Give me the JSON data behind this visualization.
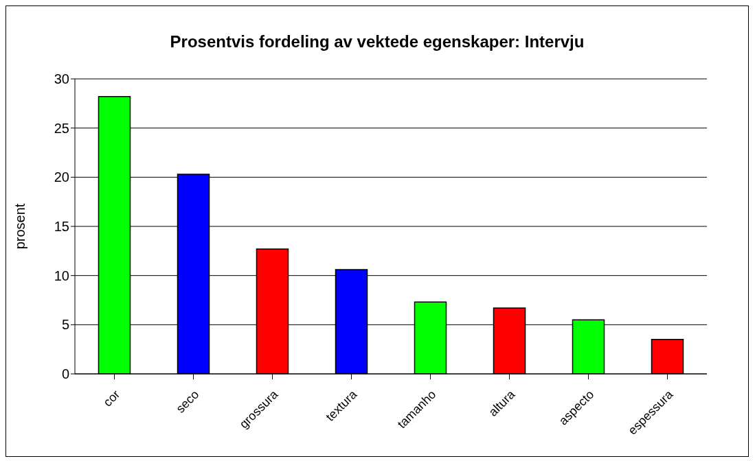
{
  "chart_data": {
    "type": "bar",
    "title": "Prosentvis fordeling av vektede egenskaper: Intervju",
    "ylabel": "prosent",
    "categories": [
      "cor",
      "seco",
      "grossura",
      "textura",
      "tamanho",
      "altura",
      "aspecto",
      "espessura"
    ],
    "values": [
      28.2,
      20.3,
      12.7,
      10.6,
      7.3,
      6.7,
      5.5,
      3.5
    ],
    "colors": [
      "#00ff00",
      "#0000ff",
      "#ff0000",
      "#0000ff",
      "#00ff00",
      "#ff0000",
      "#00ff00",
      "#ff0000"
    ],
    "ylim": [
      0,
      30
    ],
    "yticks": [
      0,
      5,
      10,
      15,
      20,
      25,
      30
    ],
    "grid": "y"
  }
}
